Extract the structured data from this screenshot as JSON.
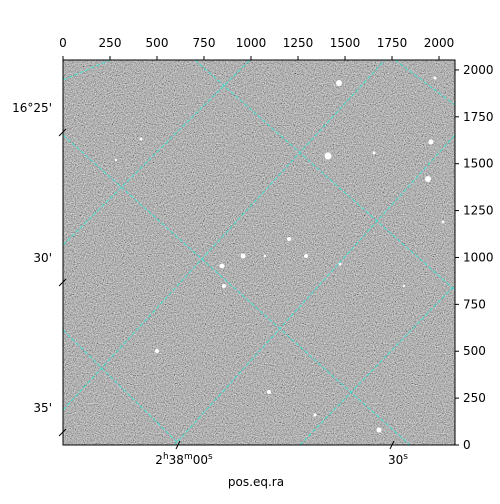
{
  "chart_data": {
    "type": "image",
    "xlabel": "pos.eq.ra",
    "xlim": [
      0,
      2085
    ],
    "xticks": [
      0,
      250,
      500,
      750,
      1000,
      1250,
      1500,
      1750,
      2000
    ],
    "ylim": [
      0,
      2053
    ],
    "yticks": [
      0,
      250,
      500,
      750,
      1000,
      1250,
      1500,
      1750,
      2000
    ],
    "world_xticks": [
      "2h38m00s",
      "30s"
    ],
    "world_yticks": [
      "16°25'",
      "30'",
      "35'"
    ],
    "grid_color": "#40e0d0"
  }
}
